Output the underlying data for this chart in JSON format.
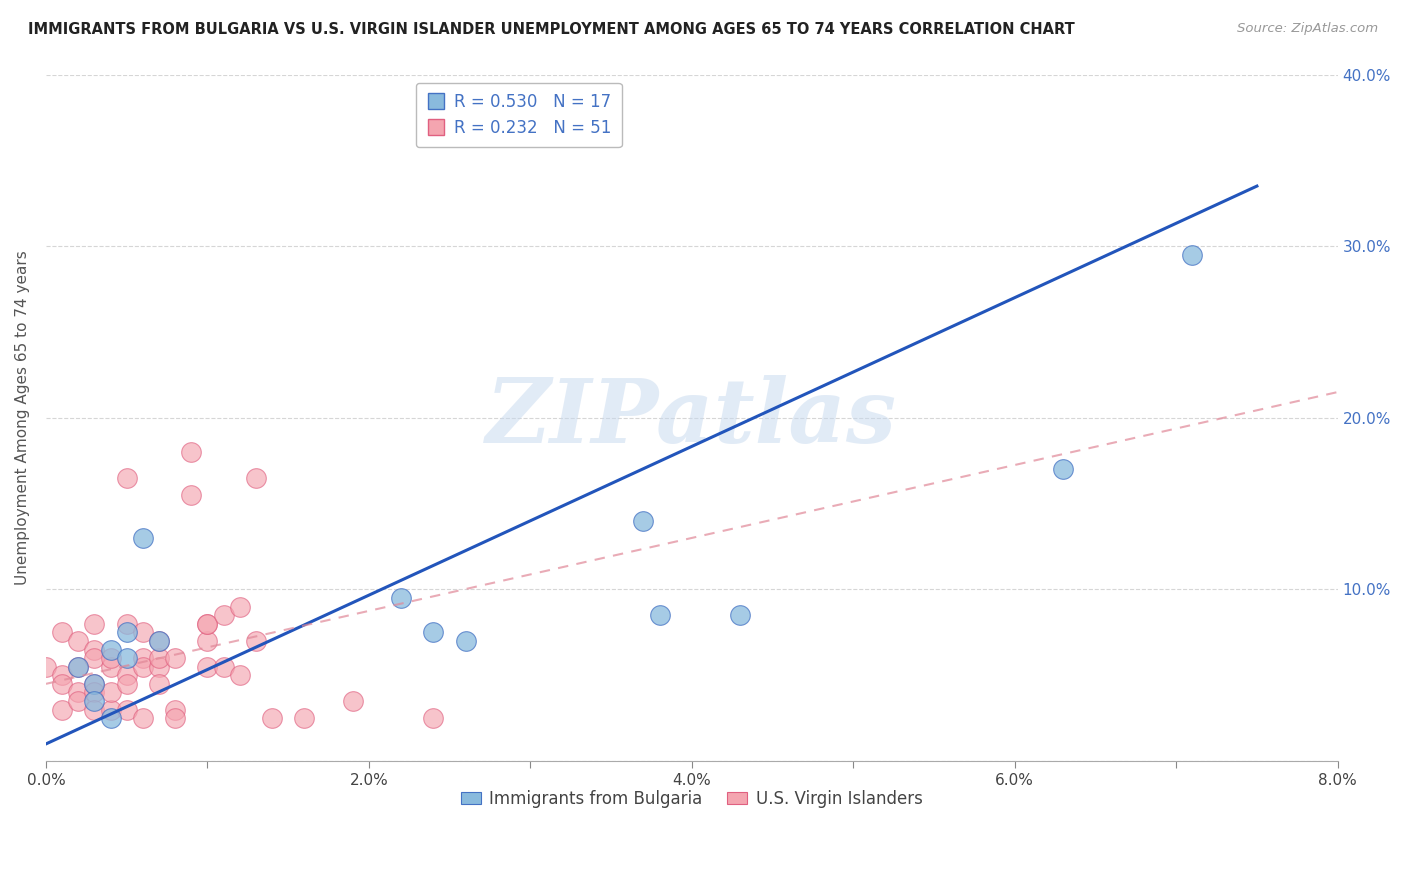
{
  "title": "IMMIGRANTS FROM BULGARIA VS U.S. VIRGIN ISLANDER UNEMPLOYMENT AMONG AGES 65 TO 74 YEARS CORRELATION CHART",
  "source": "Source: ZipAtlas.com",
  "ylabel": "Unemployment Among Ages 65 to 74 years",
  "xlim": [
    0.0,
    0.08
  ],
  "ylim": [
    0.0,
    0.4
  ],
  "xticks": [
    0.0,
    0.02,
    0.04,
    0.06,
    0.08
  ],
  "yticks": [
    0.0,
    0.1,
    0.2,
    0.3,
    0.4
  ],
  "xtick_labels": [
    "0.0%",
    "",
    "2.0%",
    "",
    "4.0%",
    "",
    "6.0%",
    "",
    "8.0%"
  ],
  "xtick_positions": [
    0.0,
    0.01,
    0.02,
    0.03,
    0.04,
    0.05,
    0.06,
    0.07,
    0.08
  ],
  "right_ytick_labels": [
    "",
    "10.0%",
    "20.0%",
    "30.0%",
    "40.0%"
  ],
  "legend_r_blue": "R = 0.530",
  "legend_n_blue": "N = 17",
  "legend_r_pink": "R = 0.232",
  "legend_n_pink": "N = 51",
  "legend_label_blue": "Immigrants from Bulgaria",
  "legend_label_pink": "U.S. Virgin Islanders",
  "blue_scatter_color": "#89BADD",
  "blue_edge_color": "#4472C4",
  "pink_scatter_color": "#F4A5B0",
  "pink_edge_color": "#E06080",
  "blue_line_color": "#2255BB",
  "pink_line_color": "#E08898",
  "watermark": "ZIPatlas",
  "watermark_color": "#C5D8EE",
  "blue_scatter_x": [
    0.002,
    0.003,
    0.003,
    0.004,
    0.004,
    0.005,
    0.005,
    0.006,
    0.007,
    0.022,
    0.024,
    0.026,
    0.037,
    0.038,
    0.043,
    0.063,
    0.071
  ],
  "blue_scatter_y": [
    0.055,
    0.045,
    0.035,
    0.025,
    0.065,
    0.06,
    0.075,
    0.13,
    0.07,
    0.095,
    0.075,
    0.07,
    0.14,
    0.085,
    0.085,
    0.17,
    0.295
  ],
  "pink_scatter_x": [
    0.0,
    0.001,
    0.001,
    0.001,
    0.001,
    0.002,
    0.002,
    0.002,
    0.002,
    0.003,
    0.003,
    0.003,
    0.003,
    0.003,
    0.003,
    0.004,
    0.004,
    0.004,
    0.004,
    0.005,
    0.005,
    0.005,
    0.005,
    0.005,
    0.006,
    0.006,
    0.006,
    0.006,
    0.007,
    0.007,
    0.007,
    0.007,
    0.008,
    0.008,
    0.008,
    0.009,
    0.009,
    0.01,
    0.01,
    0.01,
    0.01,
    0.011,
    0.011,
    0.012,
    0.012,
    0.013,
    0.013,
    0.014,
    0.016,
    0.019,
    0.024
  ],
  "pink_scatter_y": [
    0.055,
    0.03,
    0.05,
    0.045,
    0.075,
    0.04,
    0.035,
    0.07,
    0.055,
    0.08,
    0.065,
    0.045,
    0.04,
    0.06,
    0.03,
    0.03,
    0.055,
    0.04,
    0.06,
    0.05,
    0.03,
    0.045,
    0.08,
    0.165,
    0.025,
    0.06,
    0.055,
    0.075,
    0.055,
    0.045,
    0.06,
    0.07,
    0.03,
    0.06,
    0.025,
    0.18,
    0.155,
    0.07,
    0.08,
    0.055,
    0.08,
    0.055,
    0.085,
    0.09,
    0.05,
    0.07,
    0.165,
    0.025,
    0.025,
    0.035,
    0.025
  ],
  "blue_line_x0": 0.0,
  "blue_line_x1": 0.075,
  "blue_line_y0": 0.01,
  "blue_line_y1": 0.335,
  "pink_line_x0": 0.0,
  "pink_line_x1": 0.08,
  "pink_line_y0": 0.045,
  "pink_line_y1": 0.215
}
